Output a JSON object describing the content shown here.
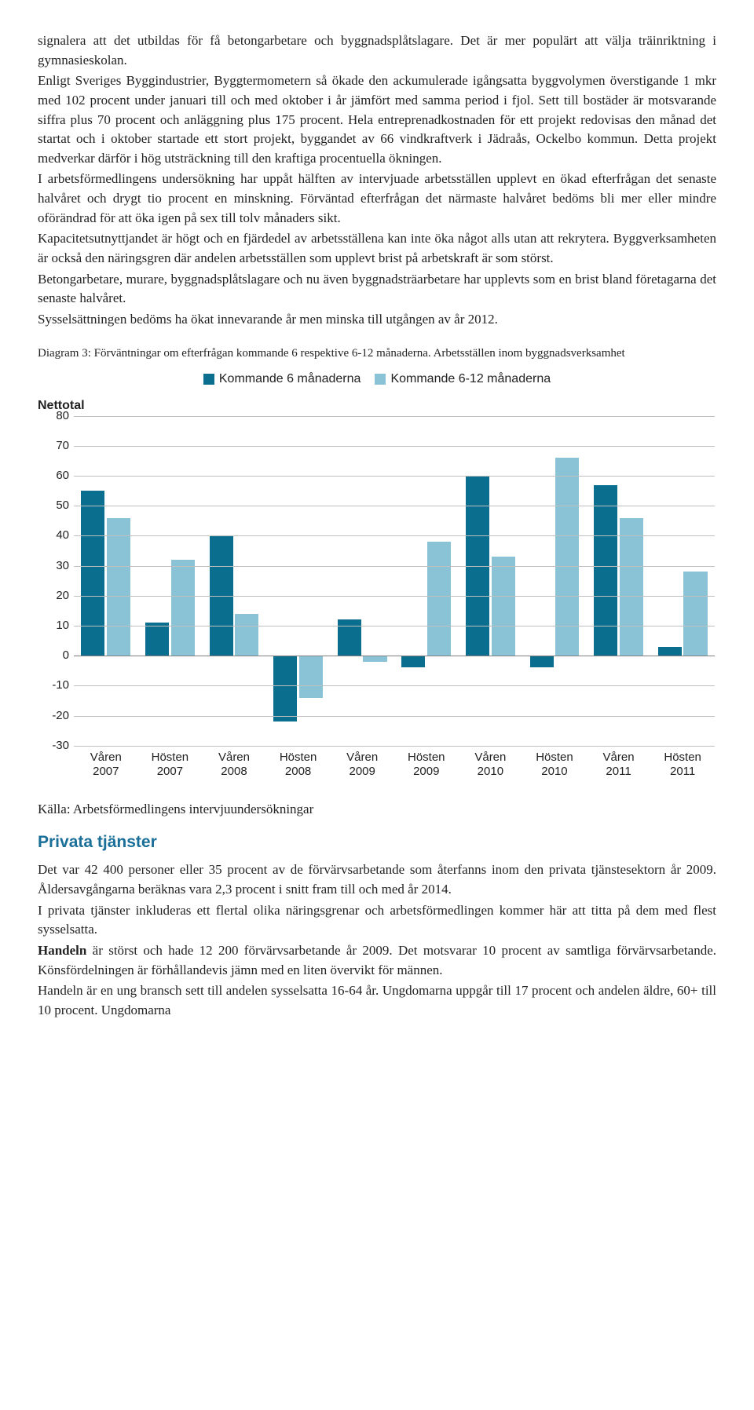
{
  "body": {
    "p1": "signalera att det utbildas för få betongarbetare och byggnadsplåtslagare. Det är mer populärt att välja träinriktning i gymnasieskolan.",
    "p2": "Enligt Sveriges Byggindustrier, Byggtermometern så ökade den ackumulerade igångsatta byggvolymen överstigande 1 mkr med 102 procent under januari till och med oktober i år jämfört med samma period i fjol. Sett till bostäder är motsvarande siffra plus 70 procent och anläggning plus 175 procent. Hela entreprenadkostnaden för ett projekt redovisas den månad det startat och i oktober startade ett stort projekt, byggandet av 66 vindkraftverk i Jädraås, Ockelbo kommun. Detta projekt medverkar därför i hög utsträckning till den kraftiga procentuella ökningen.",
    "p3": "I arbetsförmedlingens undersökning har uppåt hälften av intervjuade arbetsställen upplevt en ökad efterfrågan det senaste halvåret och drygt tio procent en minskning. Förväntad efterfrågan det närmaste halvåret bedöms bli mer eller mindre oförändrad för att öka igen på sex till tolv månaders sikt.",
    "p4": "Kapacitetsutnyttjandet är högt och en fjärdedel av arbetsställena kan inte öka något alls utan att rekrytera. Byggverksamheten är också den näringsgren där andelen arbetsställen som upplevt brist på arbetskraft är som störst.",
    "p5": "Betongarbetare, murare, byggnadsplåtslagare och nu även byggnadsträarbetare har upplevts som en brist bland företagarna det senaste halvåret.",
    "p6": "Sysselsättningen bedöms ha ökat innevarande år men minska till utgången av år 2012.",
    "caption": "Diagram 3: Förväntningar om efterfrågan kommande 6 respektive 6-12 månaderna. Arbetsställen inom byggnadsverksamhet",
    "source": "Källa: Arbetsförmedlingens intervjuundersökningar",
    "section_head": "Privata tjänster",
    "p7": "Det var 42 400 personer eller 35 procent av de förvärvsarbetande som återfanns inom den privata tjänstesektorn år 2009. Åldersavgångarna beräknas vara 2,3 procent i snitt fram till och med år 2014.",
    "p8": "I privata tjänster inkluderas ett flertal olika näringsgrenar och arbetsförmedlingen kommer här att titta på dem med flest sysselsatta.",
    "p9a": "Handeln",
    "p9b": " är störst och hade 12 200 förvärvsarbetande år 2009. Det motsvarar 10 procent av samtliga förvärvsarbetande. Könsfördelningen är förhållandevis jämn med en liten övervikt för männen.",
    "p10": "Handeln är en ung bransch sett till andelen sysselsatta 16-64 år. Ungdomarna uppgår till 17 procent och andelen äldre, 60+ till 10 procent. Ungdomarna"
  },
  "chart": {
    "legend": {
      "a": "Kommande 6 månaderna",
      "b": "Kommande 6-12 månaderna"
    },
    "axis_title": "Nettotal",
    "ymin": -30,
    "ymax": 80,
    "ystep": 10,
    "grid_color": "#bfbfbf",
    "zero_color": "#808080",
    "colors": {
      "a": "#0a6f8f",
      "b": "#8bc3d6"
    },
    "categories": [
      "Våren 2007",
      "Hösten 2007",
      "Våren 2008",
      "Hösten 2008",
      "Våren 2009",
      "Hösten 2009",
      "Våren 2010",
      "Hösten 2010",
      "Våren 2011",
      "Hösten 2011"
    ],
    "series_a": [
      55,
      11,
      40,
      -22,
      12,
      -4,
      60,
      -4,
      57,
      3
    ],
    "series_b": [
      46,
      32,
      14,
      -14,
      -2,
      38,
      33,
      66,
      46,
      28
    ]
  }
}
